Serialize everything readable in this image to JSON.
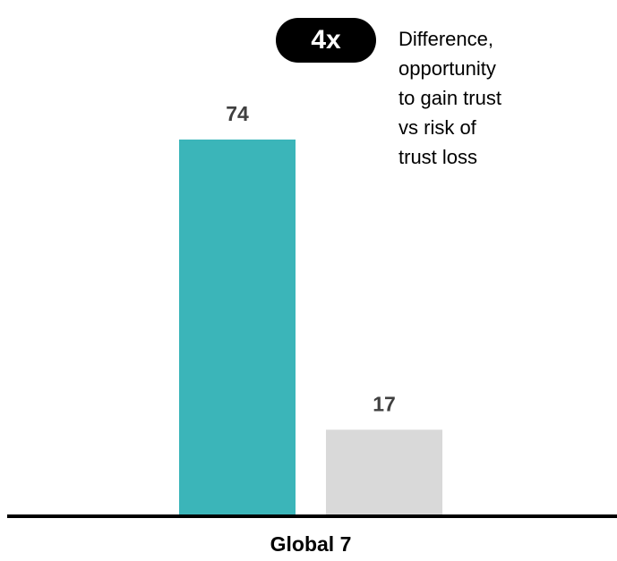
{
  "chart_data": {
    "type": "bar",
    "categories": [
      "Global 7"
    ],
    "series": [
      {
        "color": "#3bb5b9",
        "values": [
          74
        ]
      },
      {
        "color": "#d9d9d9",
        "values": [
          17
        ]
      }
    ],
    "ylim": [
      0,
      100
    ],
    "annotation": {
      "badge": "4x",
      "text": [
        "Difference,",
        "opportunity",
        "to gain trust",
        "vs risk of",
        "trust loss"
      ]
    }
  }
}
